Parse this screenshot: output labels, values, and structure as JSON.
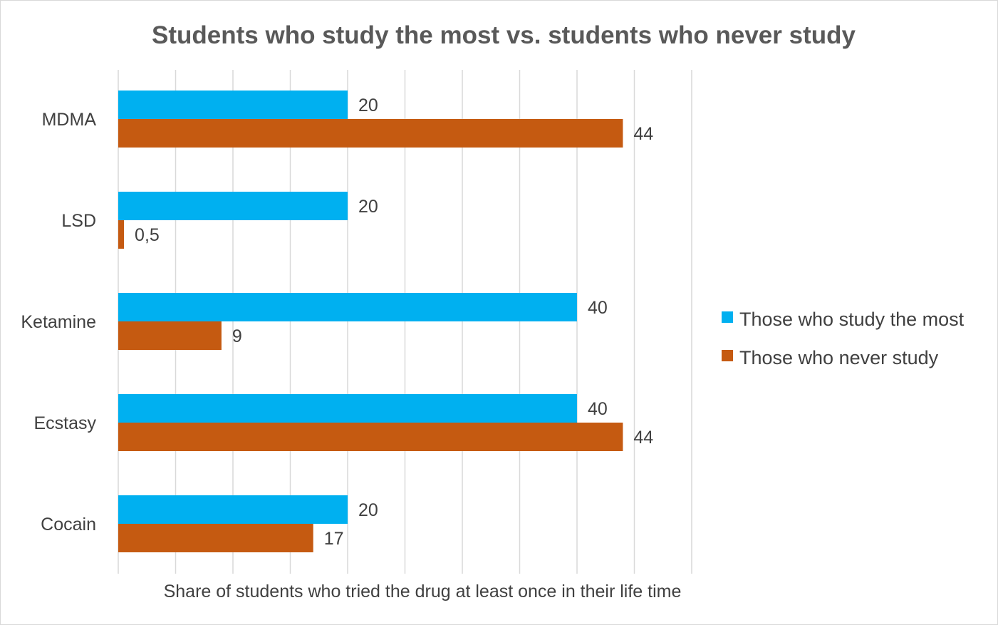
{
  "chart_data": {
    "type": "bar",
    "orientation": "horizontal",
    "title": "Students who study the most vs. students who never study",
    "xlabel": "Share of students who tried the drug at least once in their life time",
    "ylabel": "",
    "categories": [
      "MDMA",
      "LSD",
      "Ketamine",
      "Ecstasy",
      "Cocain"
    ],
    "series": [
      {
        "name": "Those who study the most",
        "color": "#00b0f0",
        "values": [
          20,
          20,
          40,
          40,
          20
        ],
        "labels": [
          "20",
          "20",
          "40",
          "40",
          "20"
        ]
      },
      {
        "name": "Those who never study",
        "color": "#c55a11",
        "values": [
          44,
          0.5,
          9,
          44,
          17
        ],
        "labels": [
          "44",
          "0,5",
          "9",
          "44",
          "17"
        ]
      }
    ],
    "xlim": [
      0,
      50
    ],
    "grid": true,
    "legend": "right",
    "tick_labels_shown": false
  }
}
